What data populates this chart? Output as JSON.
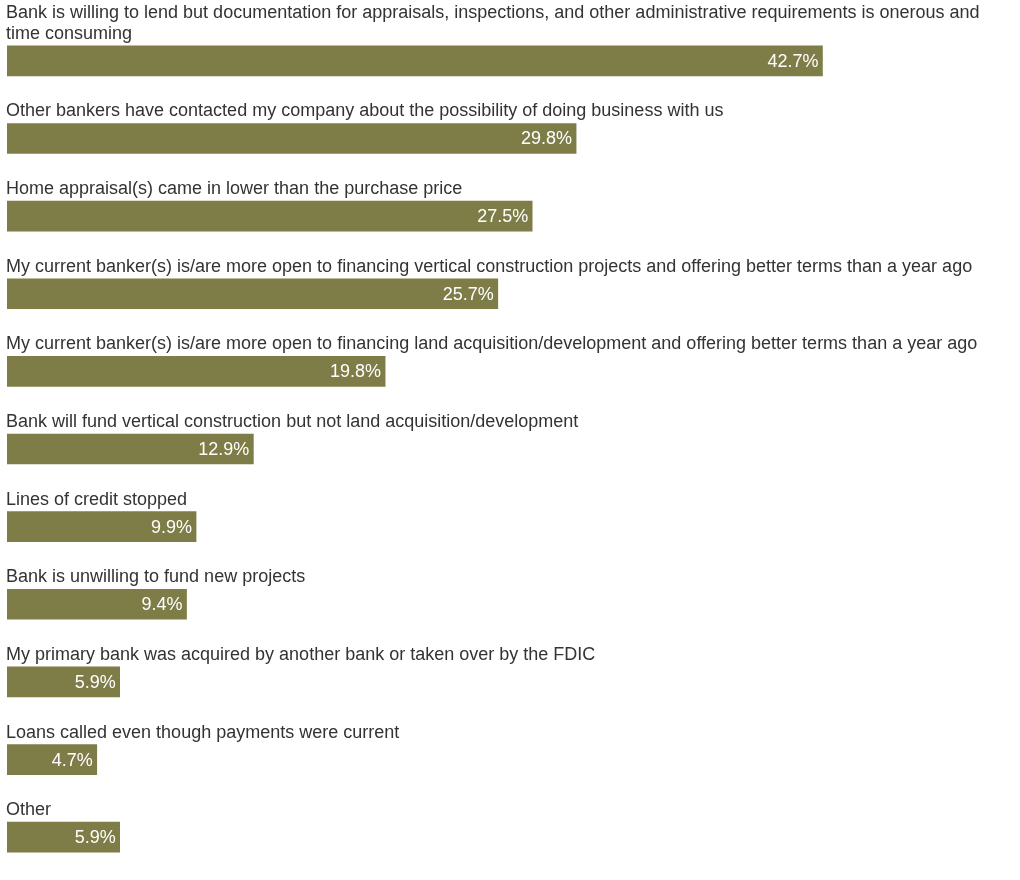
{
  "chart_data": {
    "type": "bar",
    "orientation": "horizontal",
    "categories": [
      "Bank is willing to lend but documentation for appraisals, inspections, and other administrative requirements is onerous and time consuming",
      "Other bankers have contacted my company about the possibility of doing business with us",
      "Home appraisal(s) came in lower than the purchase price",
      "My current banker(s) is/are more open to financing vertical construction projects and offering better terms than a year ago",
      "My current banker(s) is/are more open to financing land acquisition/development and offering better terms than a year ago",
      "Bank will fund vertical construction but not land acquisition/development",
      "Lines of credit stopped",
      "Bank is unwilling to fund new projects",
      "My primary bank was acquired by another bank or taken over by the FDIC",
      "Loans called even though payments were current",
      "Other"
    ],
    "values": [
      42.7,
      29.8,
      27.5,
      25.7,
      19.8,
      12.9,
      9.9,
      9.4,
      5.9,
      4.7,
      5.9
    ],
    "value_labels": [
      "42.7%",
      "29.8%",
      "27.5%",
      "25.7%",
      "19.8%",
      "12.9%",
      "9.9%",
      "9.4%",
      "5.9%",
      "4.7%",
      "5.9%"
    ],
    "color": "#7e7d47",
    "tick_labels": false
  }
}
